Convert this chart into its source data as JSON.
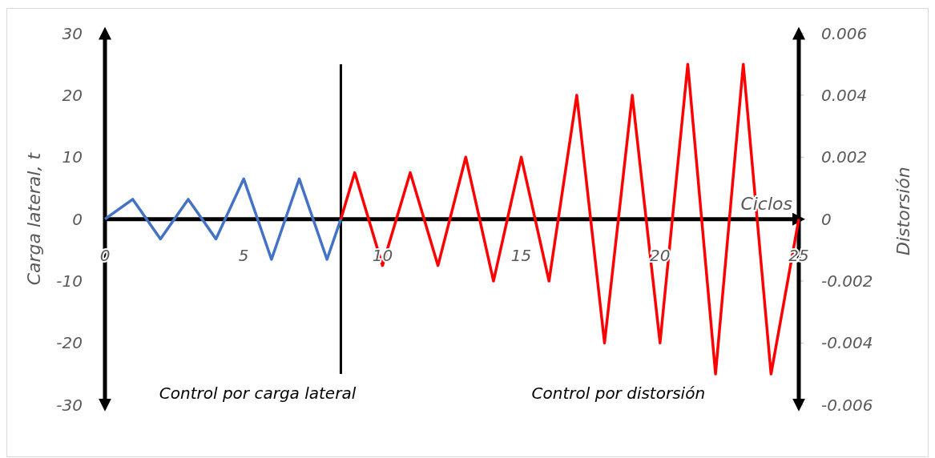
{
  "chart_data": {
    "type": "line",
    "xlabel": "Ciclos",
    "ylabel": "Carga lateral, t",
    "y2label": "Distorsión",
    "xlim": [
      0,
      25
    ],
    "xticks": [
      0,
      5,
      10,
      15,
      20,
      25
    ],
    "ylim": [
      -30,
      30
    ],
    "yticks": [
      -30,
      -20,
      -10,
      0,
      10,
      20,
      30
    ],
    "y2lim": [
      -0.006,
      0.006
    ],
    "y2ticks": [
      {
        "value": -0.006,
        "label": "-0.006"
      },
      {
        "value": -0.004,
        "label": "-0.004"
      },
      {
        "value": -0.002,
        "label": "-0.002"
      },
      0,
      {
        "value": 0.002,
        "label": "0.002"
      },
      {
        "value": 0.004,
        "label": "0.004"
      },
      {
        "value": 0.006,
        "label": "0.006"
      }
    ],
    "series": [
      {
        "color": "#4472c4",
        "x": [
          0,
          1,
          2,
          3,
          4,
          5,
          6,
          7,
          8,
          8.5
        ],
        "values": [
          0,
          3.2,
          -3.2,
          3.2,
          -3.2,
          6.5,
          -6.5,
          6.5,
          -6.5,
          0
        ]
      },
      {
        "color": "#ff0000",
        "axis": "y2",
        "x": [
          8.5,
          9,
          10,
          11,
          12,
          13,
          14,
          15,
          16,
          17,
          18,
          19,
          20,
          21,
          22,
          23,
          24,
          25
        ],
        "values": [
          0,
          0.0015,
          -0.0015,
          0.0015,
          -0.0015,
          0.002,
          -0.002,
          0.002,
          -0.002,
          0.004,
          -0.004,
          0.004,
          -0.004,
          0.005,
          -0.005,
          0.005,
          -0.005,
          0
        ]
      }
    ],
    "ref_lines": [
      {
        "axis": "x",
        "value": 8.5,
        "color": "#000000"
      }
    ],
    "annotations": [
      "Control por carga lateral",
      "Control por distorsión"
    ],
    "grid": false,
    "marker": "none",
    "line_style": "solid"
  }
}
